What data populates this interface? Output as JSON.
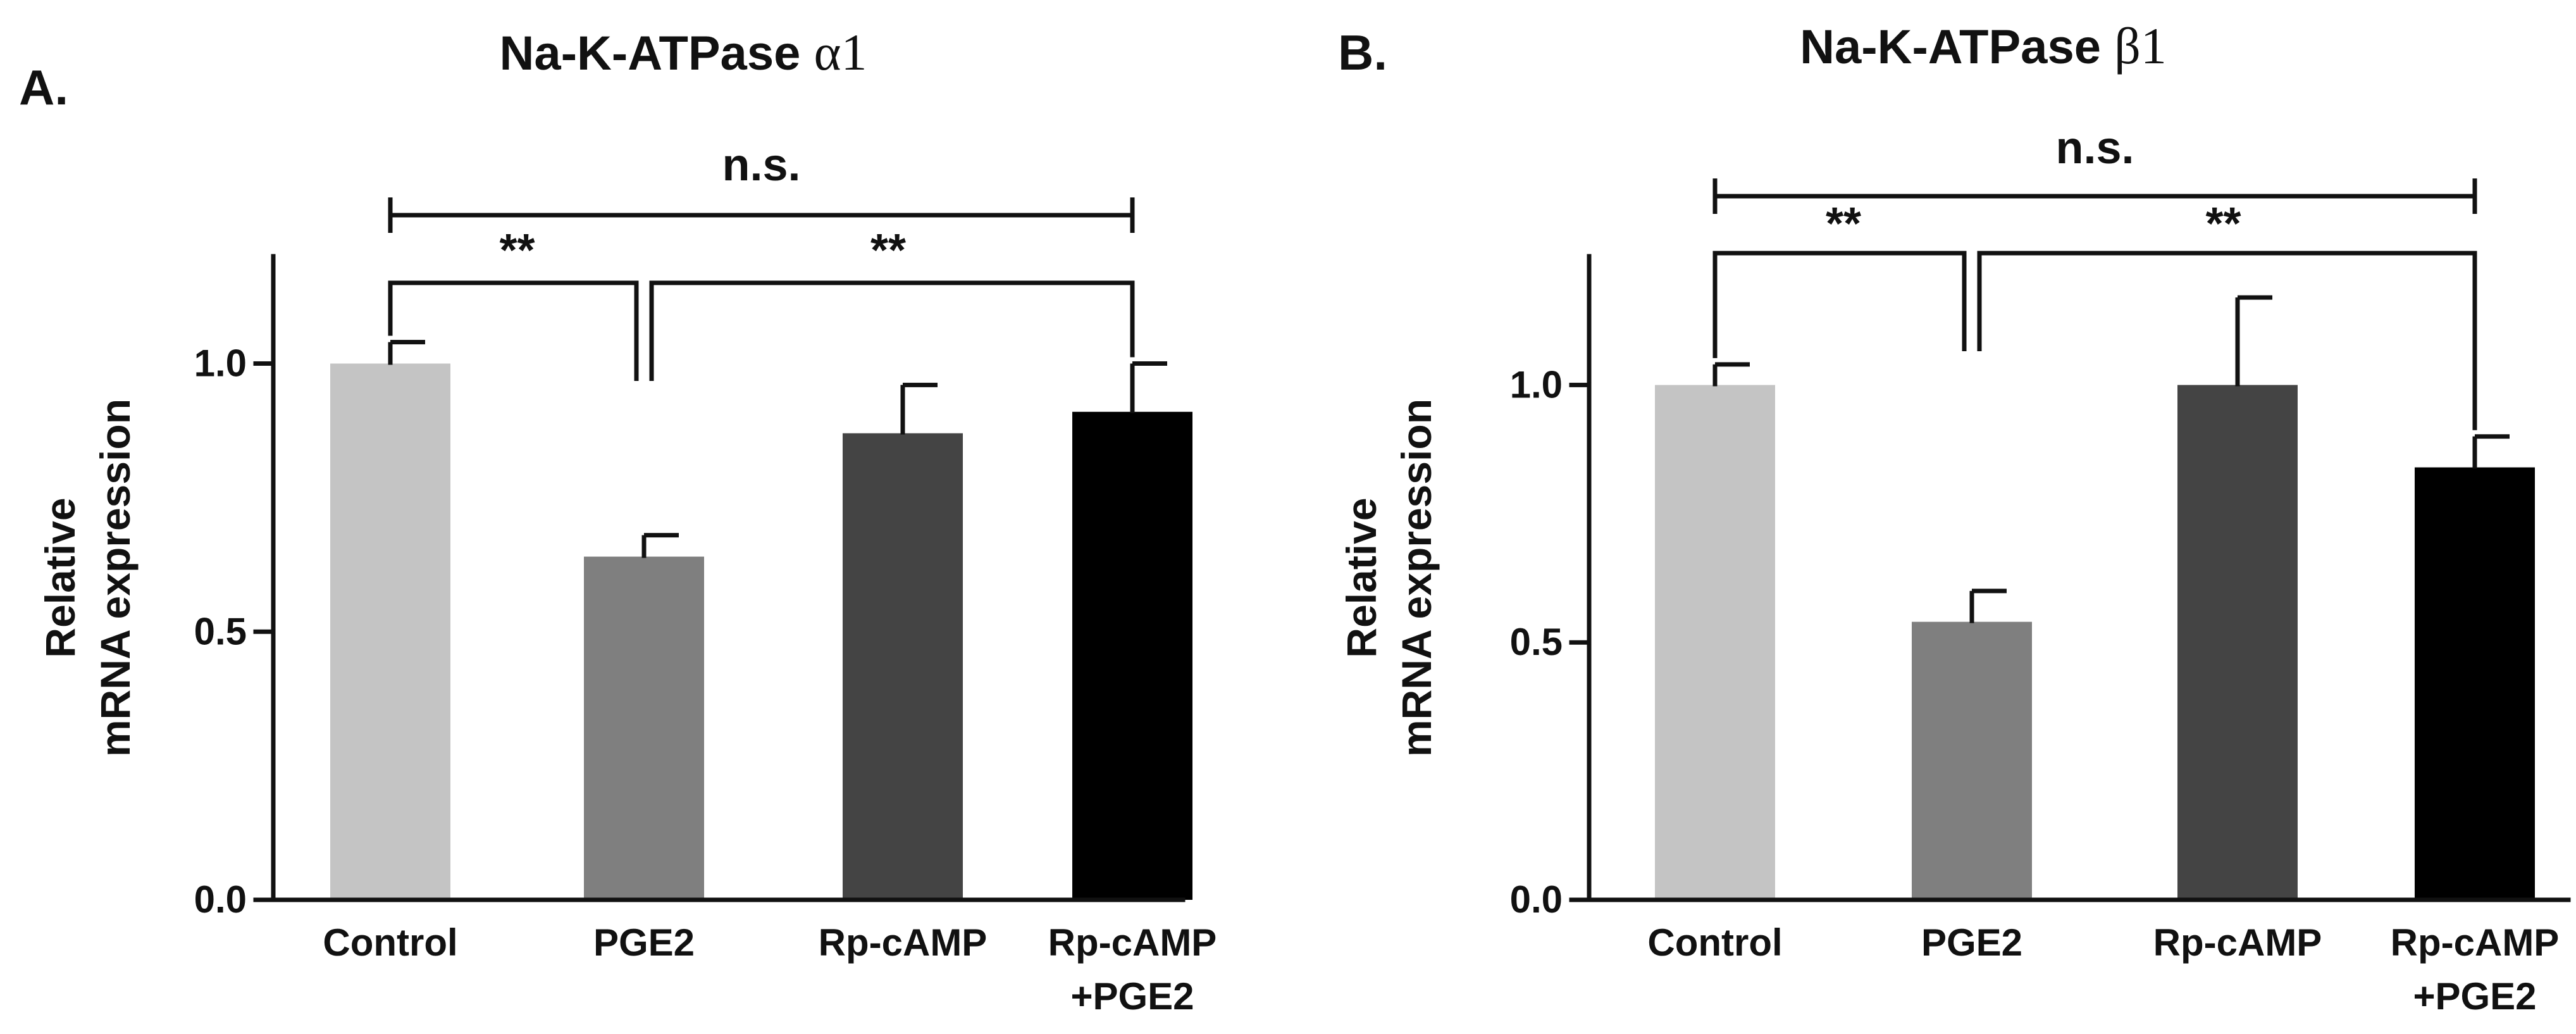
{
  "chart_data": [
    {
      "panel_label": "A.",
      "type": "bar",
      "title": "Na-K-ATPase",
      "title_greek": "α1",
      "ylabel_lines": [
        "Relative",
        "mRNA expression"
      ],
      "ylim": [
        0,
        1.2
      ],
      "yticks": [
        0.0,
        0.5,
        1.0
      ],
      "ytick_labels": [
        "0.0",
        "0.5",
        "1.0"
      ],
      "categories": [
        {
          "lines": [
            "Control"
          ],
          "value": 1.0,
          "error": 0.04,
          "color": "#c4c4c4"
        },
        {
          "lines": [
            "PGE2"
          ],
          "value": 0.64,
          "error": 0.04,
          "color": "#7f7f7f"
        },
        {
          "lines": [
            "Rp-cAMP"
          ],
          "value": 0.87,
          "error": 0.09,
          "color": "#444444"
        },
        {
          "lines": [
            "Rp-cAMP",
            "+PGE2"
          ],
          "value": 0.91,
          "error": 0.09,
          "color": "#000000"
        }
      ],
      "annotations": [
        {
          "label": "n.s.",
          "from": 0,
          "to": 3
        },
        {
          "label": "**",
          "from": 0,
          "to": 1
        },
        {
          "label": "**",
          "from": 1,
          "to": 3
        }
      ]
    },
    {
      "panel_label": "B.",
      "type": "bar",
      "title": "Na-K-ATPase",
      "title_greek": "β1",
      "ylabel_lines": [
        "Relative",
        "mRNA expression"
      ],
      "ylim": [
        0,
        1.25
      ],
      "yticks": [
        0.0,
        0.5,
        1.0
      ],
      "ytick_labels": [
        "0.0",
        "0.5",
        "1.0"
      ],
      "categories": [
        {
          "lines": [
            "Control"
          ],
          "value": 1.0,
          "error": 0.04,
          "color": "#c4c4c4"
        },
        {
          "lines": [
            "PGE2"
          ],
          "value": 0.54,
          "error": 0.06,
          "color": "#7f7f7f"
        },
        {
          "lines": [
            "Rp-cAMP"
          ],
          "value": 1.0,
          "error": 0.17,
          "color": "#444444"
        },
        {
          "lines": [
            "Rp-cAMP",
            "+PGE2"
          ],
          "value": 0.84,
          "error": 0.06,
          "color": "#000000"
        }
      ],
      "annotations": [
        {
          "label": "n.s.",
          "from": 0,
          "to": 3
        },
        {
          "label": "**",
          "from": 0,
          "to": 1
        },
        {
          "label": "**",
          "from": 1,
          "to": 3
        }
      ]
    }
  ]
}
